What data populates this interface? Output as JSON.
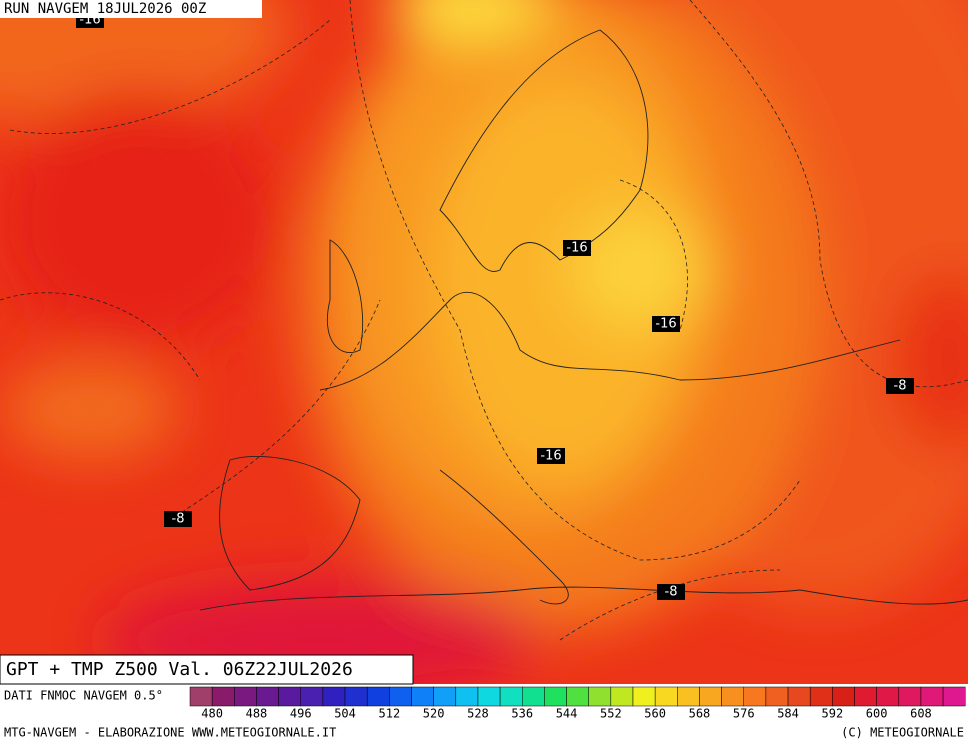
{
  "header": {
    "run": "RUN NAVGEM 18JUL2026 00Z"
  },
  "map": {
    "contour_labels": [
      "-16",
      "-16",
      "-16",
      "-8",
      "-16",
      "-8",
      "-8"
    ]
  },
  "caption": {
    "title": "GPT + TMP Z500 Val. 06Z22JUL2026"
  },
  "legend": {
    "source": "DATI FNMOC NAVGEM 0.5°",
    "labels": [
      480,
      488,
      496,
      504,
      512,
      520,
      528,
      536,
      544,
      552,
      560,
      568,
      576,
      584,
      592,
      600,
      608
    ]
  },
  "footer": {
    "left": "MTG-NAVGEM - ELABORAZIONE WWW.METEOGIORNALE.IT",
    "right": "(C) METEOGIORNALE"
  }
}
